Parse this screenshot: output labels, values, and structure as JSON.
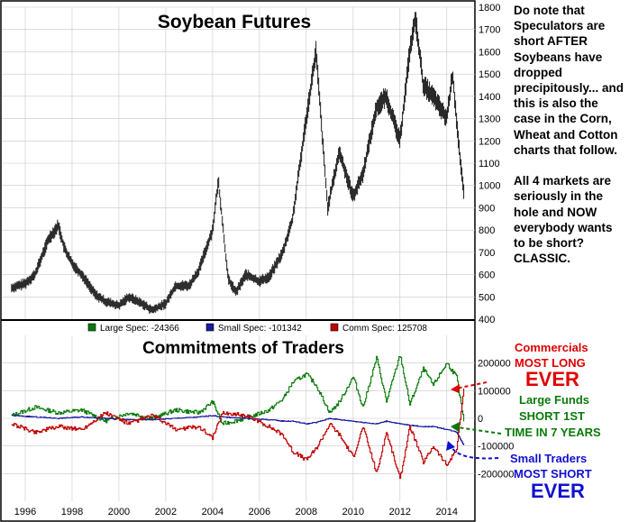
{
  "chart_data": [
    {
      "type": "ohlc",
      "title": "Soybean Futures",
      "ylim": [
        400,
        1800
      ],
      "y_ticks": [
        "1800",
        "1700",
        "1600",
        "1500",
        "1400",
        "1300",
        "1200",
        "1100",
        "1000",
        "900",
        "800",
        "700",
        "600",
        "500",
        "400"
      ],
      "x": [
        "1995-06",
        "1996-01",
        "1996-06",
        "1997-01",
        "1997-06",
        "1997-09",
        "1998-01",
        "1998-06",
        "1999-01",
        "1999-06",
        "2000-01",
        "2000-06",
        "2001-01",
        "2001-06",
        "2002-01",
        "2002-06",
        "2003-01",
        "2003-06",
        "2004-01",
        "2004-04",
        "2004-09",
        "2005-01",
        "2005-06",
        "2006-01",
        "2006-06",
        "2007-01",
        "2007-06",
        "2008-01",
        "2008-06",
        "2008-12",
        "2009-06",
        "2010-01",
        "2010-06",
        "2011-01",
        "2011-06",
        "2012-01",
        "2012-06",
        "2012-09",
        "2013-01",
        "2013-06",
        "2014-01",
        "2014-04",
        "2014-08",
        "2014-10"
      ],
      "close": [
        540,
        560,
        600,
        760,
        820,
        720,
        650,
        600,
        510,
        480,
        460,
        500,
        470,
        440,
        470,
        550,
        550,
        620,
        800,
        1020,
        580,
        520,
        600,
        570,
        590,
        700,
        850,
        1300,
        1600,
        900,
        1150,
        950,
        1050,
        1350,
        1400,
        1200,
        1600,
        1750,
        1450,
        1400,
        1300,
        1500,
        1100,
        950
      ]
    },
    {
      "type": "line",
      "title": "Commitments of Traders",
      "legend": [
        {
          "label": "Large Spec: -24366",
          "color": "#0a7a0a"
        },
        {
          "label": "Small Spec: -101342",
          "color": "#1a1aa0"
        },
        {
          "label": "Comm Spec: 125708",
          "color": "#c00000"
        }
      ],
      "ylim": [
        -300000,
        300000
      ],
      "y_ticks": [
        "200000",
        "100000",
        "0",
        "-100000",
        "-200000"
      ],
      "x_ticks": [
        "1996",
        "1998",
        "2000",
        "2002",
        "2004",
        "2006",
        "2008",
        "2010",
        "2012",
        "2014"
      ],
      "x": [
        "1995-06",
        "1996-06",
        "1997-06",
        "1998-06",
        "1999-06",
        "2000-06",
        "2001-06",
        "2002-06",
        "2003-06",
        "2004-01",
        "2004-06",
        "2005-06",
        "2006-06",
        "2007-01",
        "2007-06",
        "2008-01",
        "2008-06",
        "2009-01",
        "2009-06",
        "2010-01",
        "2010-06",
        "2011-01",
        "2011-06",
        "2012-01",
        "2012-06",
        "2013-01",
        "2013-06",
        "2014-01",
        "2014-06",
        "2014-10"
      ],
      "series": [
        {
          "name": "Large Spec",
          "color": "#0a7a0a",
          "values": [
            10000,
            40000,
            20000,
            30000,
            -10000,
            20000,
            0,
            30000,
            20000,
            60000,
            -20000,
            0,
            30000,
            70000,
            130000,
            160000,
            120000,
            20000,
            60000,
            150000,
            40000,
            220000,
            60000,
            230000,
            50000,
            180000,
            120000,
            200000,
            150000,
            -24366
          ]
        },
        {
          "name": "Small Spec",
          "color": "#1a1aa0",
          "values": [
            10000,
            5000,
            0,
            5000,
            0,
            -5000,
            -5000,
            0,
            5000,
            10000,
            5000,
            0,
            -5000,
            -10000,
            -10000,
            -20000,
            -15000,
            0,
            -5000,
            -10000,
            -15000,
            -20000,
            -10000,
            -20000,
            -25000,
            -30000,
            -30000,
            -40000,
            -50000,
            -101342
          ]
        },
        {
          "name": "Comm Spec",
          "color": "#c00000",
          "values": [
            -20000,
            -50000,
            -30000,
            -40000,
            20000,
            -20000,
            10000,
            -40000,
            -30000,
            -70000,
            20000,
            10000,
            -30000,
            -60000,
            -120000,
            -150000,
            -110000,
            -20000,
            -60000,
            -140000,
            -30000,
            -200000,
            -50000,
            -220000,
            -30000,
            -160000,
            -100000,
            -170000,
            -110000,
            125708
          ]
        }
      ]
    }
  ],
  "commentary": "Do note that Speculators are short AFTER Soybeans have dropped precipitously... and this is also the case in the Corn, Wheat and Cotton charts that follow.\n\nAll 4 markets are seriously in the hole and NOW everybody wants to be short? CLASSIC.",
  "annotations": {
    "commercials_line1": "Commercials",
    "commercials_line2": "MOST LONG",
    "commercials_line3": "EVER",
    "large_line1": "Large Funds",
    "large_line2": "SHORT 1ST",
    "large_line3": "TIME IN 7 YEARS",
    "small_line1": "Small Traders",
    "small_line2": "MOST SHORT",
    "small_line3": "EVER"
  },
  "colors": {
    "red": "#e00000",
    "green": "#0a7a0a",
    "blue": "#1010d0",
    "grid": "#c8c8c8"
  }
}
